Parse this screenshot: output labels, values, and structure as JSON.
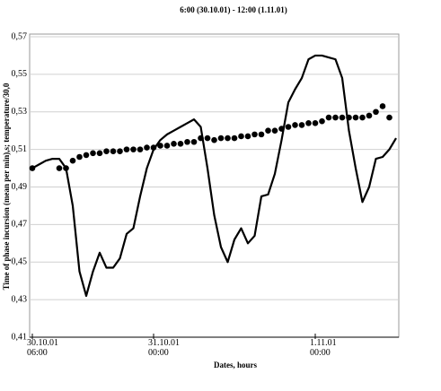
{
  "chart_data": {
    "type": "line",
    "title": "6:00 (30.10.01) - 12:00 (1.11.01)",
    "x_label": "Dates, hours",
    "y_label": "Time of phase incursion (mean per min),s; temperature/30,0",
    "xlim": [
      0,
      54
    ],
    "xticks": [
      {
        "value": 0,
        "label": "30.10.01\n06:00"
      },
      {
        "value": 18,
        "label": "31.10.01\n00:00"
      },
      {
        "value": 42,
        "label": "1.11.01\n00:00"
      }
    ],
    "ylim": [
      0.41,
      0.57
    ],
    "yticks": [
      {
        "value": 0.41,
        "label": "0,41"
      },
      {
        "value": 0.43,
        "label": "0,43"
      },
      {
        "value": 0.45,
        "label": "0,45"
      },
      {
        "value": 0.47,
        "label": "0,47"
      },
      {
        "value": 0.49,
        "label": "0,49"
      },
      {
        "value": 0.51,
        "label": "0,51"
      },
      {
        "value": 0.53,
        "label": "0,53"
      },
      {
        "value": 0.55,
        "label": "0,55"
      },
      {
        "value": 0.57,
        "label": "0,57"
      }
    ],
    "grid": true,
    "series": [
      {
        "type": "line",
        "color": "#000000",
        "x": [
          0,
          1,
          2,
          3,
          4,
          5,
          6,
          7,
          8,
          9,
          10,
          11,
          12,
          13,
          14,
          15,
          16,
          17,
          18,
          19,
          20,
          21,
          22,
          23,
          24,
          25,
          26,
          27,
          28,
          29,
          30,
          31,
          32,
          33,
          34,
          35,
          36,
          37,
          38,
          39,
          40,
          41,
          42,
          43,
          44,
          45,
          46,
          47,
          48,
          49,
          50,
          51,
          52,
          53,
          54
        ],
        "values": [
          0.5,
          0.502,
          0.504,
          0.505,
          0.505,
          0.5,
          0.48,
          0.445,
          0.432,
          0.445,
          0.455,
          0.447,
          0.447,
          0.452,
          0.465,
          0.468,
          0.485,
          0.5,
          0.51,
          0.515,
          0.518,
          0.52,
          0.522,
          0.524,
          0.526,
          0.522,
          0.5,
          0.475,
          0.458,
          0.45,
          0.462,
          0.468,
          0.46,
          0.464,
          0.485,
          0.486,
          0.497,
          0.515,
          0.535,
          0.542,
          0.548,
          0.558,
          0.56,
          0.56,
          0.559,
          0.558,
          0.548,
          0.52,
          0.5,
          0.482,
          0.49,
          0.505,
          0.506,
          0.51,
          0.516
        ]
      },
      {
        "type": "scatter",
        "color": "#000000",
        "x": [
          0,
          4,
          5,
          6,
          7,
          8,
          9,
          10,
          11,
          12,
          13,
          14,
          15,
          16,
          17,
          18,
          19,
          20,
          21,
          22,
          23,
          24,
          25,
          26,
          27,
          28,
          29,
          30,
          31,
          32,
          33,
          34,
          35,
          36,
          37,
          38,
          39,
          40,
          41,
          42,
          43,
          44,
          45,
          46,
          47,
          48,
          49,
          50,
          51,
          52,
          53
        ],
        "values": [
          0.5,
          0.5,
          0.5,
          0.504,
          0.506,
          0.507,
          0.508,
          0.508,
          0.509,
          0.509,
          0.509,
          0.51,
          0.51,
          0.51,
          0.511,
          0.511,
          0.512,
          0.512,
          0.513,
          0.513,
          0.514,
          0.514,
          0.516,
          0.516,
          0.515,
          0.516,
          0.516,
          0.516,
          0.517,
          0.517,
          0.518,
          0.518,
          0.52,
          0.52,
          0.521,
          0.522,
          0.523,
          0.523,
          0.524,
          0.524,
          0.525,
          0.527,
          0.527,
          0.527,
          0.527,
          0.527,
          0.527,
          0.528,
          0.53,
          0.533,
          0.527
        ]
      }
    ]
  }
}
